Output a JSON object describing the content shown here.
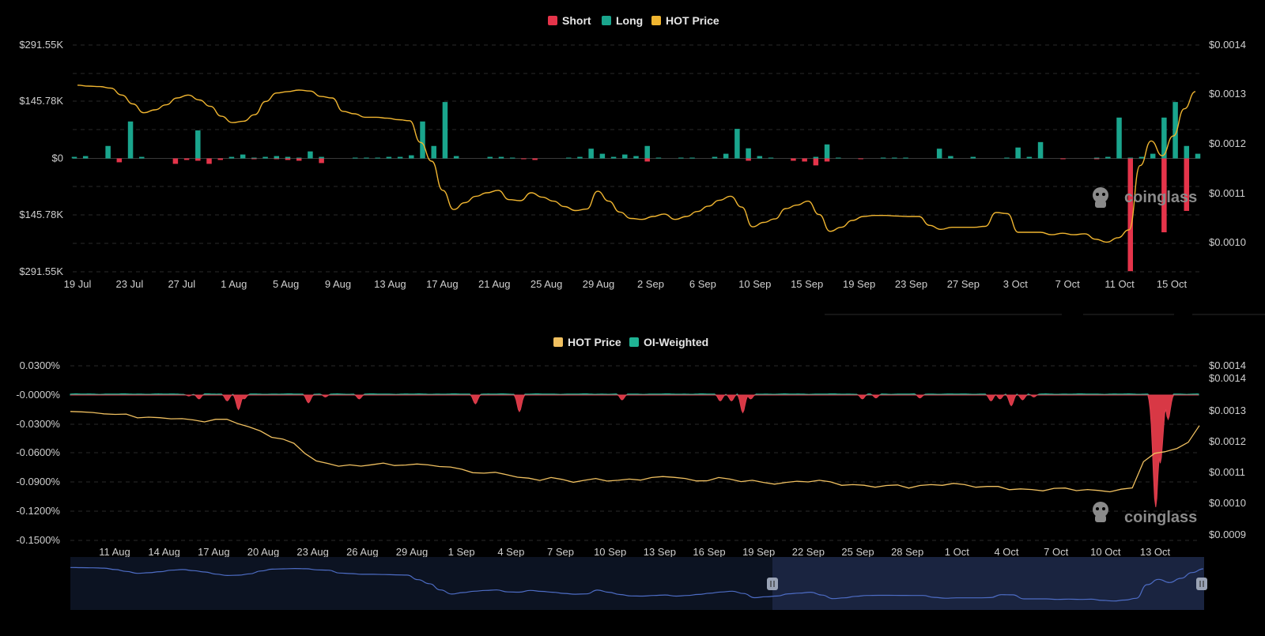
{
  "chart_data": [
    {
      "type": "bar",
      "legend": [
        "Short",
        "Long",
        "HOT Price"
      ],
      "colors": {
        "Short": "#e5344a",
        "Long": "#1aa58d",
        "HOT Price": "#f0b530"
      },
      "left_ticks": [
        "$291.55K",
        "$145.78K",
        "$0",
        "$145.78K",
        "$291.55K"
      ],
      "right_ticks": [
        "$0.0014",
        "$0.0013",
        "$0.0012",
        "$0.0011",
        "$0.0010"
      ],
      "x_ticks": [
        "19 Jul",
        "23 Jul",
        "27 Jul",
        "1 Aug",
        "5 Aug",
        "9 Aug",
        "13 Aug",
        "17 Aug",
        "21 Aug",
        "25 Aug",
        "29 Aug",
        "2 Sep",
        "6 Sep",
        "10 Sep",
        "15 Sep",
        "19 Sep",
        "23 Sep",
        "27 Sep",
        "3 Oct",
        "7 Oct",
        "11 Oct",
        "15 Oct"
      ],
      "long_k": [
        4,
        6,
        0,
        32,
        0,
        95,
        4,
        0,
        0,
        0,
        0,
        72,
        0,
        0,
        4,
        10,
        2,
        4,
        6,
        4,
        2,
        18,
        4,
        0,
        0,
        2,
        2,
        2,
        4,
        4,
        8,
        95,
        32,
        145,
        6,
        0,
        0,
        4,
        4,
        2,
        0,
        0,
        0,
        0,
        2,
        4,
        25,
        12,
        4,
        10,
        6,
        32,
        2,
        0,
        2,
        2,
        0,
        4,
        12,
        76,
        26,
        6,
        2,
        0,
        0,
        0,
        4,
        36,
        2,
        0,
        0,
        0,
        2,
        2,
        2,
        0,
        0,
        25,
        6,
        0,
        4,
        0,
        0,
        2,
        28,
        4,
        42,
        0,
        0,
        0,
        0,
        2,
        4,
        105,
        2,
        4,
        12,
        105,
        145,
        32,
        12
      ],
      "short_k": [
        0,
        0,
        0,
        0,
        10,
        0,
        0,
        0,
        0,
        14,
        4,
        6,
        14,
        4,
        0,
        0,
        2,
        0,
        2,
        4,
        6,
        0,
        12,
        0,
        0,
        0,
        0,
        0,
        0,
        0,
        0,
        0,
        0,
        0,
        0,
        0,
        0,
        0,
        0,
        0,
        2,
        4,
        0,
        0,
        0,
        0,
        0,
        0,
        0,
        0,
        0,
        8,
        0,
        0,
        0,
        0,
        0,
        0,
        0,
        0,
        6,
        0,
        0,
        0,
        6,
        8,
        18,
        8,
        0,
        0,
        2,
        0,
        0,
        0,
        0,
        0,
        0,
        0,
        0,
        0,
        0,
        0,
        0,
        0,
        0,
        0,
        0,
        0,
        2,
        0,
        0,
        2,
        0,
        0,
        290,
        0,
        0,
        190,
        0,
        135
      ],
      "price": [
        0.001318,
        0.001316,
        0.001315,
        0.001312,
        0.001298,
        0.00128,
        0.001262,
        0.001268,
        0.001278,
        0.001292,
        0.001298,
        0.001288,
        0.001275,
        0.001255,
        0.001242,
        0.001245,
        0.001258,
        0.001285,
        0.001302,
        0.001305,
        0.001308,
        0.001306,
        0.001295,
        0.001292,
        0.001265,
        0.00126,
        0.001253,
        0.001253,
        0.001251,
        0.001248,
        0.001246,
        0.001202,
        0.001164,
        0.001105,
        0.001066,
        0.00108,
        0.001093,
        0.0011,
        0.001105,
        0.001086,
        0.001084,
        0.0011,
        0.001091,
        0.001083,
        0.001072,
        0.001064,
        0.001067,
        0.001103,
        0.001083,
        0.001061,
        0.001048,
        0.001046,
        0.001052,
        0.001057,
        0.001046,
        0.001052,
        0.001062,
        0.001073,
        0.001085,
        0.001093,
        0.001071,
        0.001031,
        0.00104,
        0.001047,
        0.001068,
        0.001075,
        0.001083,
        0.001056,
        0.001022,
        0.00103,
        0.001044,
        0.001052,
        0.001054,
        0.001054,
        0.001053,
        0.001052,
        0.001052,
        0.001034,
        0.001026,
        0.00103,
        0.00103,
        0.00103,
        0.001032,
        0.00106,
        0.001058,
        0.00102,
        0.00102,
        0.00102,
        0.001015,
        0.001018,
        0.001015,
        0.001017,
        0.001006,
        0.001,
        0.001009,
        0.001025,
        0.001155,
        0.001205,
        0.001175,
        0.001215,
        0.00127,
        0.001305
      ]
    },
    {
      "type": "area",
      "legend": [
        "HOT Price",
        "OI-Weighted"
      ],
      "colors": {
        "HOT Price": "#f0c060",
        "OI-Weighted": "#1fb394",
        "negative": "#d83845"
      },
      "left_ticks": [
        "0.0300%",
        "-0.0000%",
        "-0.0300%",
        "-0.0600%",
        "-0.0900%",
        "-0.1200%",
        "-0.1500%"
      ],
      "right_ticks": [
        "$0.0014",
        "$0.0014",
        "$0.0013",
        "$0.0012",
        "$0.0011",
        "$0.0010",
        "$0.0009"
      ],
      "x_ticks": [
        "11 Aug",
        "14 Aug",
        "17 Aug",
        "20 Aug",
        "23 Aug",
        "26 Aug",
        "29 Aug",
        "1 Sep",
        "4 Sep",
        "7 Sep",
        "10 Sep",
        "13 Sep",
        "16 Sep",
        "19 Sep",
        "22 Sep",
        "25 Sep",
        "28 Sep",
        "1 Oct",
        "4 Oct",
        "7 Oct",
        "10 Oct",
        "13 Oct"
      ],
      "dips": [
        [
          10.5,
          -0.1
        ],
        [
          11.4,
          -0.4
        ],
        [
          13.9,
          -0.6
        ],
        [
          14.9,
          -1.5
        ],
        [
          15.4,
          -0.4
        ],
        [
          21.1,
          -0.8
        ],
        [
          22.6,
          -0.2
        ],
        [
          25.6,
          -0.4
        ],
        [
          35.9,
          -0.9
        ],
        [
          39.8,
          -1.7
        ],
        [
          48.9,
          -0.5
        ],
        [
          57.6,
          -0.6
        ],
        [
          58.6,
          -0.6
        ],
        [
          59.6,
          -1.8
        ],
        [
          60.3,
          -0.4
        ],
        [
          70.2,
          -0.4
        ],
        [
          71.4,
          -0.3
        ],
        [
          75.3,
          -0.3
        ],
        [
          81.6,
          -0.6
        ],
        [
          82.4,
          -0.4
        ],
        [
          83.4,
          -1.1
        ],
        [
          84.4,
          -0.5
        ],
        [
          85.4,
          -0.2
        ],
        [
          96.2,
          -11.5
        ],
        [
          96.6,
          -7.0
        ],
        [
          97.3,
          -2.5
        ]
      ],
      "price": [
        0.001298,
        0.001294,
        0.001292,
        0.001294,
        0.001286,
        0.001287,
        0.001281,
        0.001277,
        0.001275,
        0.001278,
        0.001272,
        0.001268,
        0.001268,
        0.00127,
        0.00127,
        0.001262,
        0.001245,
        0.001232,
        0.001218,
        0.001206,
        0.001192,
        0.001165,
        0.001135,
        0.001127,
        0.001124,
        0.001122,
        0.001118,
        0.001129,
        0.001128,
        0.00112,
        0.001128,
        0.001125,
        0.001122,
        0.001123,
        0.001115,
        0.001108,
        0.001103,
        0.001095,
        0.001098,
        0.001097,
        0.001082,
        0.001079,
        0.001078,
        0.001081,
        0.001075,
        0.001072,
        0.001072,
        0.001078,
        0.001076,
        0.001072,
        0.001076,
        0.001079,
        0.001081,
        0.001084,
        0.001088,
        0.001078,
        0.00107,
        0.001077,
        0.001081,
        0.001076,
        0.001074,
        0.001072,
        0.001065,
        0.001066,
        0.001065,
        0.001069,
        0.001073,
        0.001072,
        0.001067,
        0.001062,
        0.001058,
        0.001056,
        0.001056,
        0.001055,
        0.001057,
        0.001053,
        0.001055,
        0.001058,
        0.001062,
        0.001062,
        0.001058,
        0.001056,
        0.001052,
        0.001052,
        0.001048,
        0.001044,
        0.001042,
        0.001044,
        0.001046,
        0.001047,
        0.001045,
        0.001042,
        0.001039,
        0.001041,
        0.001043,
        0.00105,
        0.001135,
        0.001162,
        0.001168,
        0.001178,
        0.001198,
        0.001252
      ]
    }
  ],
  "watermark": "coinglass"
}
